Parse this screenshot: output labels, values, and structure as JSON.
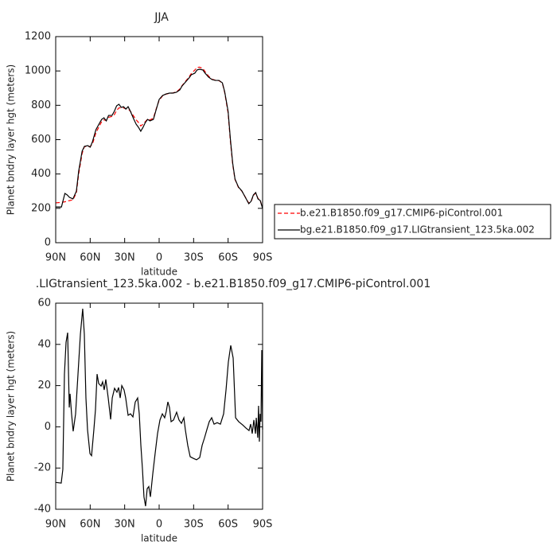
{
  "chart_data": [
    {
      "type": "line",
      "title": "JJA",
      "xlabel": "latitude",
      "ylabel": "Planet bndry layer hgt (meters)",
      "xlim": [
        90,
        -90
      ],
      "xticks": [
        {
          "value": 90,
          "label": "90N"
        },
        {
          "value": 60,
          "label": "60N"
        },
        {
          "value": 30,
          "label": "30N"
        },
        0,
        {
          "value": -30,
          "label": "30S"
        },
        {
          "value": -60,
          "label": "60S"
        },
        {
          "value": -90,
          "label": "90S"
        }
      ],
      "ylim": [
        0,
        1200
      ],
      "yticks": [
        0,
        200,
        400,
        600,
        800,
        1000,
        1200
      ],
      "legend": "right",
      "x": [
        90,
        85,
        82,
        80,
        78,
        75,
        72,
        70,
        67,
        65,
        62,
        60,
        58,
        55,
        52,
        50,
        48,
        46,
        44,
        41,
        39,
        37,
        35,
        33,
        31,
        29,
        27,
        25,
        22,
        20,
        18,
        16,
        14,
        12,
        10,
        8,
        5,
        3,
        0,
        -3,
        -6,
        -9,
        -12,
        -15,
        -18,
        -20,
        -23,
        -26,
        -28,
        -31,
        -33,
        -35,
        -38,
        -40,
        -43,
        -46,
        -49,
        -52,
        -55,
        -57,
        -60,
        -62,
        -64,
        -66,
        -69,
        -72,
        -75,
        -78,
        -80,
        -82,
        -84,
        -86,
        -88,
        -90
      ],
      "series": [
        {
          "name": "b.e21.B1850.f09_g17.CMIP6-piControl.001",
          "color": "#ff0000",
          "dashed": true,
          "values": [
            232,
            235,
            238,
            242,
            245,
            250,
            290,
            400,
            520,
            560,
            560,
            560,
            575,
            640,
            680,
            705,
            715,
            712,
            730,
            735,
            745,
            770,
            785,
            785,
            785,
            780,
            780,
            765,
            735,
            715,
            700,
            680,
            690,
            705,
            720,
            715,
            725,
            770,
            830,
            855,
            865,
            870,
            872,
            878,
            895,
            915,
            940,
            965,
            985,
            1005,
            1020,
            1022,
            1015,
            995,
            970,
            952,
            946,
            944,
            930,
            875,
            755,
            590,
            455,
            368,
            322,
            300,
            265,
            230,
            240,
            275,
            290,
            258,
            245,
            200
          ]
        },
        {
          "name": "bg.e21.B1850.f09_g17.LIGtransient_123.5ka.002",
          "color": "#000000",
          "dashed": false,
          "values": [
            208,
            208,
            287,
            278,
            264,
            255,
            300,
            417,
            533,
            561,
            565,
            556,
            588,
            658,
            695,
            718,
            727,
            709,
            741,
            741,
            765,
            797,
            806,
            788,
            792,
            778,
            792,
            765,
            718,
            690,
            672,
            649,
            672,
            700,
            718,
            709,
            718,
            765,
            834,
            857,
            866,
            871,
            871,
            876,
            890,
            913,
            936,
            959,
            978,
            987,
            1006,
            1010,
            1006,
            987,
            964,
            950,
            945,
            945,
            931,
            880,
            765,
            602,
            463,
            371,
            324,
            301,
            264,
            227,
            241,
            278,
            292,
            255,
            245,
            199
          ]
        }
      ]
    },
    {
      "type": "line",
      "title": ".LIGtransient_123.5ka.002 - b.e21.B1850.f09_g17.CMIP6-piControl.001",
      "xlabel": "latitude",
      "ylabel": "Planet bndry layer hgt (meters)",
      "xlim": [
        90,
        -90
      ],
      "xticks": [
        {
          "value": 90,
          "label": "90N"
        },
        {
          "value": 60,
          "label": "60N"
        },
        {
          "value": 30,
          "label": "30N"
        },
        0,
        {
          "value": -30,
          "label": "30S"
        },
        {
          "value": -60,
          "label": "60S"
        },
        {
          "value": -90,
          "label": "90S"
        }
      ],
      "ylim": [
        -40,
        60
      ],
      "yticks": [
        -40,
        -20,
        0,
        20,
        40,
        60
      ],
      "x": [
        90,
        85.2,
        83.8,
        82.4,
        81,
        79.6,
        78.2,
        77.5,
        76.2,
        74.8,
        72.7,
        70.6,
        68.5,
        66.5,
        65.1,
        63.7,
        62.3,
        60.2,
        58.8,
        56.8,
        55.4,
        54,
        52.6,
        50.5,
        49.2,
        47.8,
        46.4,
        44.3,
        42.2,
        40.8,
        38.8,
        36.7,
        35.3,
        33.9,
        32.5,
        30.5,
        29.1,
        27,
        24.9,
        22.8,
        20.8,
        18.7,
        17.3,
        15.9,
        14.5,
        13.2,
        11.8,
        10.4,
        9,
        7.6,
        5.5,
        3.5,
        1.4,
        -0.7,
        -2.8,
        -4.8,
        -6.2,
        -7.6,
        -9,
        -10.4,
        -12.5,
        -15.2,
        -17.3,
        -19.4,
        -21.5,
        -22.8,
        -24.9,
        -27,
        -29.8,
        -32.5,
        -35.3,
        -37.4,
        -39.5,
        -41.5,
        -43.6,
        -45.7,
        -47.8,
        -50.5,
        -53.3,
        -56.1,
        -58.2,
        -60.2,
        -62.3,
        -64.4,
        -66.5,
        -69.2,
        -72.7,
        -75.5,
        -78.2,
        -79.6,
        -81,
        -82.4,
        -83.8,
        -84.5,
        -85.8,
        -86.5,
        -87.2,
        -87.9,
        -88.6,
        -89.3,
        -90
      ],
      "series": [
        {
          "color": "#000000",
          "dashed": false,
          "values": [
            -27,
            -27.3,
            -20.7,
            25.6,
            41,
            45.7,
            9.4,
            16,
            6.3,
            -2.2,
            6.3,
            25.6,
            45,
            57.3,
            45,
            14,
            -1.4,
            -13,
            -14,
            -1.4,
            8.3,
            25.6,
            21,
            19.8,
            21.8,
            17.9,
            23,
            14,
            3.6,
            14,
            18.7,
            16.8,
            19.1,
            14,
            20,
            17.9,
            14,
            5.6,
            6.3,
            4.8,
            12,
            14,
            6.3,
            -9,
            -20.7,
            -34,
            -38.5,
            -30,
            -29,
            -34,
            -22.6,
            -13,
            -3.3,
            3.3,
            6.3,
            4.4,
            7.5,
            12.1,
            9.4,
            2.5,
            3.3,
            7.1,
            3.3,
            1.7,
            4.4,
            -1.4,
            -9,
            -14.5,
            -15.3,
            -16,
            -14.9,
            -9,
            -5.3,
            -1.4,
            2.5,
            4.4,
            1.3,
            2,
            1.3,
            6.3,
            18,
            31.4,
            39.5,
            33.4,
            4.4,
            2.5,
            0.9,
            -0.6,
            -1.8,
            1.3,
            -3.3,
            3.3,
            -3.3,
            4.4,
            -5.3,
            10.2,
            -7.2,
            6.3,
            2.5,
            37.2,
            -1.4
          ]
        }
      ]
    }
  ]
}
